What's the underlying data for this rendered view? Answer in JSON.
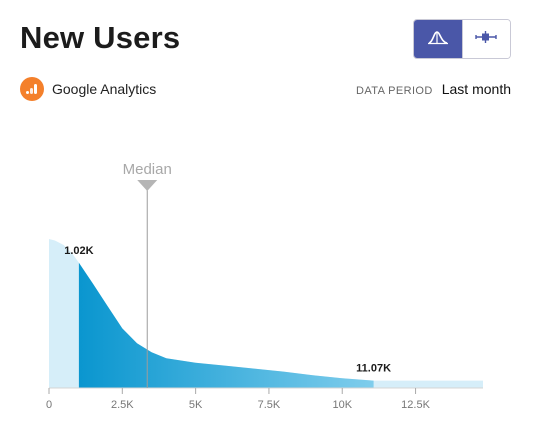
{
  "header": {
    "title": "New Users"
  },
  "view_toggle": {
    "active": "distribution",
    "options": [
      {
        "name": "distribution",
        "icon": "distribution-curve-icon"
      },
      {
        "name": "box-plot",
        "icon": "box-plot-icon"
      }
    ]
  },
  "source": {
    "icon": "google-analytics-icon",
    "label": "Google Analytics"
  },
  "period": {
    "label": "DATA PERIOD",
    "value": "Last month"
  },
  "colors": {
    "accent": "#4a57a8",
    "curve_dark": "#0a96cf",
    "curve_light": "#d6eef9",
    "source_icon": "#f4802b"
  },
  "chart_data": {
    "type": "area",
    "xlim": [
      0,
      14800
    ],
    "x_ticks": [
      {
        "value": 0,
        "label": "0"
      },
      {
        "value": 2500,
        "label": "2.5K"
      },
      {
        "value": 5000,
        "label": "5K"
      },
      {
        "value": 7500,
        "label": "7.5K"
      },
      {
        "value": 10000,
        "label": "10K"
      },
      {
        "value": 12500,
        "label": "12.5K"
      }
    ],
    "curve": {
      "x": [
        0,
        200,
        500,
        800,
        1020,
        1500,
        2000,
        2500,
        3000,
        3500,
        4000,
        5000,
        6000,
        7000,
        8000,
        9000,
        10000,
        11070,
        12000,
        13000,
        14000,
        14800
      ],
      "density": [
        1.0,
        0.99,
        0.96,
        0.9,
        0.84,
        0.7,
        0.55,
        0.4,
        0.3,
        0.24,
        0.2,
        0.17,
        0.15,
        0.13,
        0.11,
        0.085,
        0.065,
        0.05,
        0.05,
        0.05,
        0.05,
        0.05
      ]
    },
    "highlight_range": [
      1020,
      11070
    ],
    "median": {
      "value": 3350,
      "label": "Median"
    },
    "annotations": [
      {
        "x": 1020,
        "label": "1.02K"
      },
      {
        "x": 11070,
        "label": "11.07K"
      }
    ]
  }
}
